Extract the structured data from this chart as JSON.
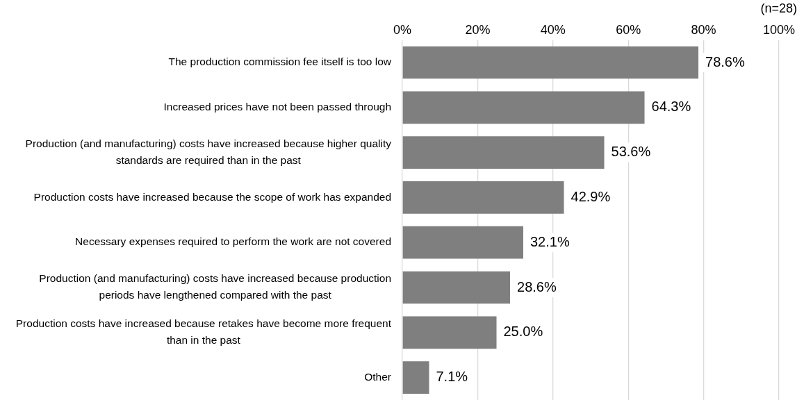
{
  "chart_data": {
    "type": "bar",
    "orientation": "horizontal",
    "categories": [
      "The production commission fee itself is too low",
      "Increased prices have not been passed through",
      "Production (and manufacturing) costs have increased because higher quality standards are required than in the past",
      "Production costs have increased because the scope of work has expanded",
      "Necessary expenses required to perform the work are not covered",
      "Production (and manufacturing) costs have increased because production periods have lengthened compared with the past",
      "Production costs have increased because retakes have become more frequent than in the past",
      "Other"
    ],
    "values": [
      78.6,
      64.3,
      53.6,
      42.9,
      32.1,
      28.6,
      25.0,
      7.1
    ],
    "value_labels": [
      "78.6%",
      "64.3%",
      "53.6%",
      "42.9%",
      "32.1%",
      "28.6%",
      "25.0%",
      "7.1%"
    ],
    "color": "#7f7f7f",
    "xlim": [
      0,
      100
    ],
    "xticks": [
      {
        "value": 0,
        "label": "0%"
      },
      {
        "value": 20,
        "label": "20%"
      },
      {
        "value": 40,
        "label": "40%"
      },
      {
        "value": 60,
        "label": "60%"
      },
      {
        "value": 80,
        "label": "80%"
      },
      {
        "value": 100,
        "label": "100%"
      }
    ],
    "annotations": [
      "(n=28)"
    ],
    "grid": "x",
    "legend": false
  }
}
